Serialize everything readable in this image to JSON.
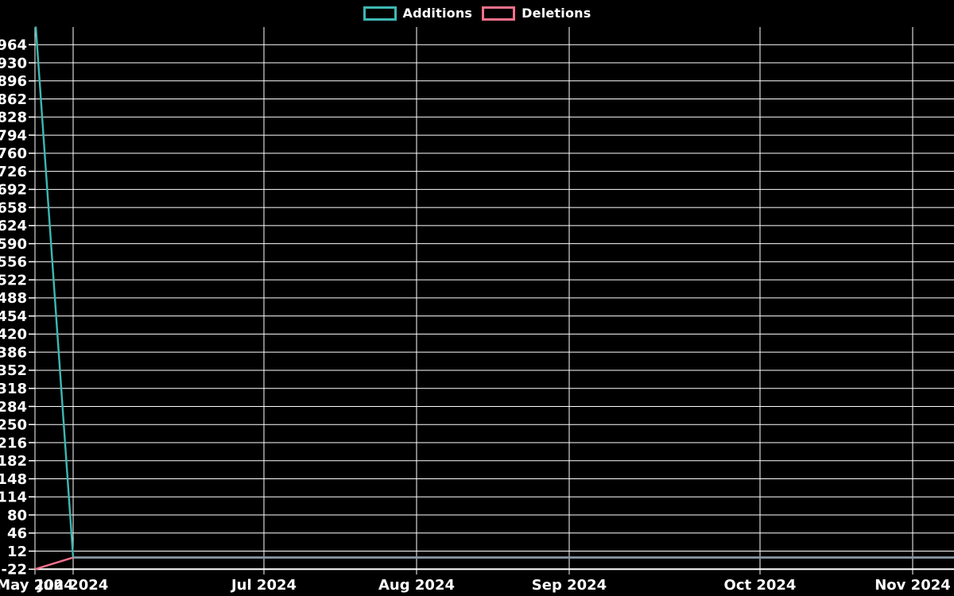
{
  "chart": {
    "background": "#000000",
    "legend": {
      "items": [
        {
          "label": "Additions",
          "color": "#3db8b4"
        },
        {
          "label": "Deletions",
          "color": "#f2708a"
        }
      ]
    },
    "chart_data": {
      "type": "line",
      "title": "",
      "xlabel": "",
      "ylabel": "",
      "x_axis": {
        "unit": "week",
        "weeks_visible": 24.1,
        "ticks": [
          {
            "label": "May 2024",
            "week": 0
          },
          {
            "label": "Jun 2024",
            "week": 1
          },
          {
            "label": "Jul 2024",
            "week": 6
          },
          {
            "label": "Aug 2024",
            "week": 10
          },
          {
            "label": "Sep 2024",
            "week": 14
          },
          {
            "label": "Oct 2024",
            "week": 19
          },
          {
            "label": "Nov 2024",
            "week": 23
          }
        ]
      },
      "y_axis": {
        "ticks": [
          964,
          930,
          896,
          862,
          828,
          794,
          760,
          726,
          692,
          658,
          624,
          590,
          556,
          522,
          488,
          454,
          420,
          386,
          352,
          318,
          284,
          250,
          216,
          182,
          148,
          114,
          80,
          46,
          12,
          -22
        ],
        "ylim": [
          -22,
          998
        ]
      },
      "grid": {
        "on": true,
        "color": "#ffffff"
      },
      "legend_position": "top-center",
      "series": [
        {
          "name": "Additions",
          "color": "#3db8b4",
          "points": [
            {
              "week": 0,
              "value": 998
            },
            {
              "week": 1,
              "value": 0
            },
            {
              "week": 24.1,
              "value": 0
            }
          ]
        },
        {
          "name": "Deletions",
          "color": "#f2708a",
          "points": [
            {
              "week": 0,
              "value": -22
            },
            {
              "week": 1,
              "value": 0
            },
            {
              "week": 24.1,
              "value": 0
            }
          ]
        }
      ],
      "merged_zero_segment": {
        "from_week": 1,
        "to_week": 24.1,
        "value": 0,
        "color": "#859ba8"
      }
    }
  }
}
